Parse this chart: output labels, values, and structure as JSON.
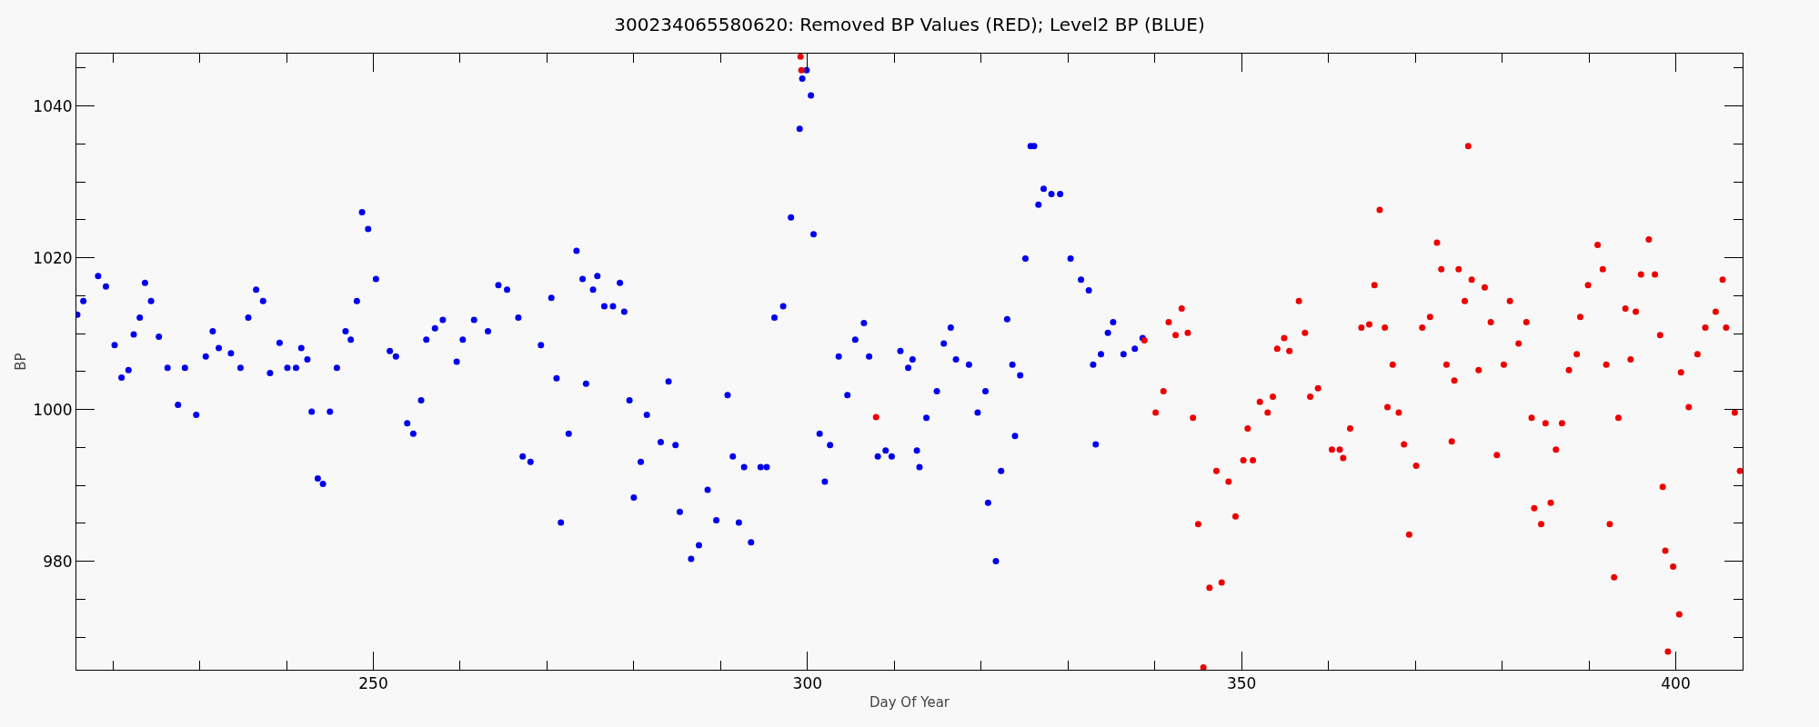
{
  "chart_data": {
    "type": "scatter",
    "title": "300234065580620: Removed BP Values (RED); Level2 BP (BLUE)",
    "xlabel": "Day Of Year",
    "ylabel": "BP",
    "marker": "circle",
    "xlim": [
      215.8,
      407.7
    ],
    "ylim": [
      965.7,
      1046.9
    ],
    "xticks": [
      {
        "value": 220,
        "label": null
      },
      {
        "value": 230,
        "label": null
      },
      {
        "value": 240,
        "label": null
      },
      250,
      {
        "value": 260,
        "label": null
      },
      {
        "value": 270,
        "label": null
      },
      {
        "value": 280,
        "label": null
      },
      {
        "value": 290,
        "label": null
      },
      300,
      {
        "value": 310,
        "label": null
      },
      {
        "value": 320,
        "label": null
      },
      {
        "value": 330,
        "label": null
      },
      {
        "value": 340,
        "label": null
      },
      350,
      {
        "value": 360,
        "label": null
      },
      {
        "value": 370,
        "label": null
      },
      {
        "value": 380,
        "label": null
      },
      {
        "value": 390,
        "label": null
      },
      400
    ],
    "yticks": [
      {
        "value": 970,
        "label": null
      },
      {
        "value": 975,
        "label": null
      },
      980,
      {
        "value": 985,
        "label": null
      },
      {
        "value": 990,
        "label": null
      },
      {
        "value": 995,
        "label": null
      },
      1000,
      {
        "value": 1005,
        "label": null
      },
      {
        "value": 1010,
        "label": null
      },
      {
        "value": 1015,
        "label": null
      },
      1020,
      {
        "value": 1025,
        "label": null
      },
      {
        "value": 1030,
        "label": null
      },
      {
        "value": 1035,
        "label": null
      },
      1040,
      {
        "value": 1045,
        "label": null
      }
    ],
    "series": [
      {
        "color": "#0000ee",
        "x": [
          215.9,
          216.6,
          218.3,
          219.2,
          220.2,
          221,
          221.8,
          222.4,
          223.1,
          223.7,
          224.4,
          225.3,
          226.3,
          227.5,
          228.3,
          229.6,
          230.7,
          231.5,
          232.2,
          233.6,
          234.7,
          235.6,
          236.5,
          237.3,
          238.1,
          239.2,
          240.1,
          241.1,
          241.7,
          242.4,
          242.9,
          243.6,
          244.2,
          245,
          245.8,
          246.8,
          247.4,
          248.1,
          248.7,
          249.4,
          250.3,
          251.9,
          252.6,
          253.9,
          254.6,
          255.5,
          256.1,
          257.1,
          258,
          259.6,
          260.3,
          261.6,
          263.2,
          264.4,
          265.4,
          266.7,
          267.2,
          268.1,
          269.3,
          270.5,
          271.1,
          271.6,
          272.5,
          273.4,
          274.1,
          274.5,
          275.3,
          275.8,
          276.6,
          277.6,
          278.4,
          278.9,
          279.5,
          280,
          280.8,
          281.5,
          283.1,
          284,
          284.8,
          285.3,
          286.6,
          287.5,
          288.5,
          289.5,
          290.8,
          291.4,
          292.1,
          292.7,
          293.5,
          294.6,
          295.3,
          296.2,
          297.2,
          298.1,
          299.1,
          299.4,
          299.9,
          300.4,
          300.7,
          301.4,
          302,
          302.6,
          303.6,
          304.6,
          305.5,
          306.5,
          307.1,
          308.1,
          309,
          309.7,
          310.7,
          311.6,
          312.1,
          312.6,
          312.9,
          313.7,
          314.9,
          315.7,
          316.5,
          317.1,
          318.6,
          319.6,
          320.5,
          320.8,
          321.7,
          322.3,
          323,
          323.6,
          323.9,
          324.5,
          325.1,
          325.7,
          326.1,
          326.6,
          327.2,
          328.1,
          329.1,
          330.3,
          331.5,
          332.4,
          332.9,
          333.2,
          333.8,
          334.6,
          335.2,
          336.4,
          337.7,
          338.6
        ],
        "values": [
          1012.5,
          1014.3,
          1017.6,
          1016.2,
          1008.5,
          1004.2,
          1005.2,
          1009.9,
          1012.1,
          1016.7,
          1014.3,
          1009.6,
          1005.5,
          1000.6,
          1005.5,
          999.3,
          1007,
          1010.3,
          1008.1,
          1007.4,
          1005.5,
          1012.1,
          1015.8,
          1014.3,
          1004.8,
          1008.8,
          1005.5,
          1005.5,
          1008.1,
          1006.6,
          999.7,
          990.9,
          990.2,
          999.7,
          1005.5,
          1010.3,
          1009.2,
          1014.3,
          1026,
          1023.8,
          1017.2,
          1007.7,
          1007,
          998.2,
          996.8,
          1001.2,
          1009.2,
          1010.7,
          1011.8,
          1006.3,
          1009.2,
          1011.8,
          1010.3,
          1016.4,
          1015.8,
          1012.1,
          993.8,
          993.1,
          1008.5,
          1014.7,
          1004.1,
          985.1,
          996.8,
          1020.9,
          1017.2,
          1003.4,
          1015.8,
          1017.6,
          1013.6,
          1013.6,
          1016.7,
          1012.9,
          1001.2,
          988.4,
          993.1,
          999.3,
          995.7,
          1003.7,
          995.3,
          986.5,
          980.3,
          982.1,
          989.4,
          985.4,
          1001.9,
          993.8,
          985.1,
          992.4,
          982.5,
          992.4,
          992.4,
          1012.1,
          1013.6,
          1025.3,
          1037,
          1043.6,
          1044.7,
          1041.4,
          1023.1,
          996.8,
          990.5,
          995.3,
          1007,
          1001.9,
          1009.2,
          1011.4,
          1007,
          993.8,
          994.6,
          993.8,
          1007.7,
          1005.5,
          1006.6,
          994.6,
          992.4,
          998.9,
          1002.4,
          1008.7,
          1010.8,
          1006.6,
          1005.9,
          999.6,
          1002.4,
          987.7,
          980,
          991.9,
          1011.9,
          1005.9,
          996.5,
          1004.5,
          1019.9,
          1034.7,
          1034.7,
          1027,
          1029.1,
          1028.4,
          1028.4,
          1019.9,
          1017.1,
          1015.7,
          1005.9,
          995.4,
          1007.3,
          1010.1,
          1011.5,
          1007.3,
          1008,
          1009.4
        ]
      },
      {
        "color": "#ee0000",
        "x": [
          299.2,
          299.3,
          307.9,
          338.8,
          340.1,
          341,
          341.6,
          342.4,
          343.1,
          343.8,
          344.4,
          345,
          345.6,
          346.3,
          347.1,
          347.7,
          348.5,
          349.3,
          350.2,
          350.7,
          351.3,
          352.1,
          353,
          353.6,
          354.1,
          354.9,
          355.5,
          356.6,
          357.3,
          357.9,
          358.8,
          360.4,
          361.3,
          361.7,
          362.5,
          363.8,
          364.7,
          365.3,
          365.9,
          366.5,
          366.8,
          367.4,
          368.1,
          368.7,
          369.3,
          370.1,
          370.8,
          371.7,
          372.5,
          373,
          373.6,
          374.2,
          374.5,
          375,
          375.7,
          376.1,
          376.5,
          377.3,
          378,
          378.7,
          379.4,
          380.2,
          380.9,
          381.9,
          382.8,
          383.4,
          383.7,
          384.5,
          385,
          385.6,
          386.2,
          386.9,
          387.7,
          388.6,
          389,
          389.9,
          391,
          391.6,
          392,
          392.4,
          392.9,
          393.4,
          394.2,
          394.8,
          395.4,
          396,
          396.9,
          397.6,
          398.2,
          398.5,
          398.8,
          399.1,
          399.7,
          400.4,
          400.6,
          401.5,
          402.5,
          403.4,
          404.6,
          405.4,
          405.8,
          406.8,
          407.4
        ],
        "values": [
          1046.5,
          1044.7,
          999,
          1009.1,
          999.6,
          1002.4,
          1011.5,
          1009.8,
          1013.3,
          1010.1,
          998.9,
          984.9,
          966,
          976.5,
          991.9,
          977.2,
          990.5,
          985.9,
          993.3,
          997.5,
          993.3,
          1001,
          999.6,
          1001.7,
          1008,
          1009.4,
          1007.7,
          1014.3,
          1010.1,
          1001.7,
          1002.8,
          994.7,
          994.7,
          993.6,
          997.5,
          1010.8,
          1011.2,
          1016.4,
          1026.3,
          1010.8,
          1000.3,
          1005.9,
          999.6,
          995.4,
          983.5,
          992.6,
          1010.8,
          1012.2,
          1022,
          1018.5,
          1005.9,
          995.8,
          1003.8,
          1018.5,
          1014.3,
          1034.7,
          1017.1,
          1005.2,
          1016.1,
          1011.5,
          994,
          1005.9,
          1014.3,
          1008.7,
          1011.5,
          998.9,
          987,
          984.9,
          998.2,
          987.7,
          994.7,
          998.2,
          1005.2,
          1007.3,
          1012.2,
          1016.4,
          1021.7,
          1018.5,
          1005.9,
          984.9,
          977.9,
          998.9,
          1013.3,
          1006.6,
          1012.9,
          1017.8,
          1022.4,
          1017.8,
          1009.8,
          989.8,
          981.4,
          968.1,
          979.3,
          973,
          1004.9,
          1000.3,
          1007.3,
          1010.8,
          1012.9,
          1017.1,
          1010.8,
          999.6,
          991.9
        ]
      }
    ]
  }
}
